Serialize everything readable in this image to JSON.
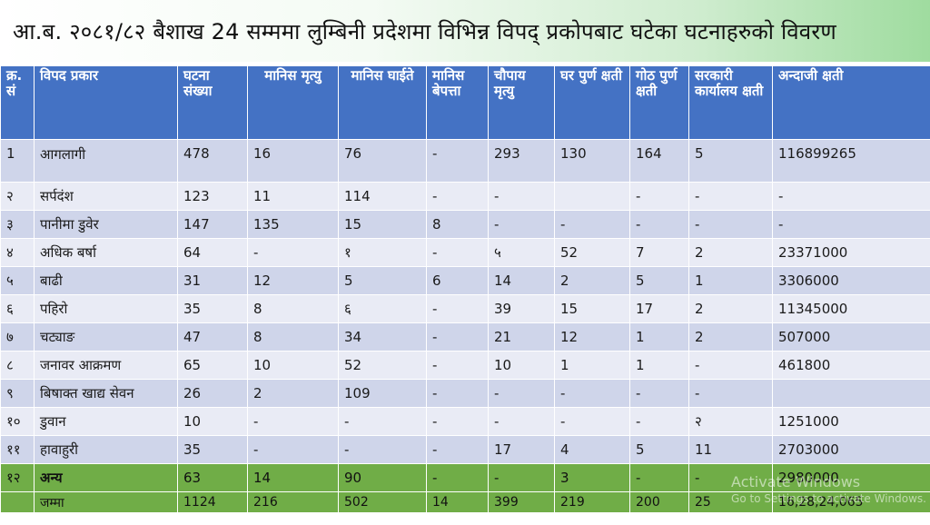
{
  "title": "आ.ब. २०८१/८२ बैशाख 24 सम्ममा लुम्बिनी प्रदेशमा विभिन्न विपद् प्रकोपबाट घटेका घटनाहरुको विवरण",
  "headers": [
    "क्र. सं",
    "विपद प्रकार",
    "घटना संख्या",
    "मानिस मृत्यु",
    "मानिस घाईते",
    "मानिस बेपत्ता",
    "चौपाय मृत्यु",
    "घर पुर्ण क्षती",
    "गोठ पुर्ण क्षती",
    "सरकारी कार्यालय क्षती",
    "अन्दाजी क्षती"
  ],
  "rows": [
    [
      "1",
      "आगलागी",
      "478",
      "16",
      "76",
      "-",
      "293",
      "130",
      "164",
      "5",
      "116899265"
    ],
    [
      "२",
      "सर्पदंश",
      "123",
      "11",
      "114",
      "-",
      "-",
      "",
      "-",
      "-",
      "-"
    ],
    [
      "३",
      "पानीमा डुवेर",
      "147",
      "135",
      "15",
      "8",
      "-",
      "-",
      "-",
      "-",
      "-"
    ],
    [
      "४",
      "अधिक बर्षा",
      "64",
      "-",
      "१",
      "-",
      "५",
      "52",
      "7",
      "2",
      "23371000"
    ],
    [
      "५",
      "बाढी",
      "31",
      "12",
      "5",
      "6",
      "14",
      "2",
      "5",
      "1",
      "3306000"
    ],
    [
      "६",
      "पहिरो",
      "35",
      "8",
      "६",
      "-",
      "39",
      "15",
      "17",
      "2",
      "11345000"
    ],
    [
      "७",
      "चट्याङ",
      "47",
      "8",
      "34",
      "-",
      "21",
      "12",
      "1",
      "2",
      "507000"
    ],
    [
      "८",
      "जनावर आक्रमण",
      "65",
      "10",
      "52",
      "-",
      "10",
      "1",
      "1",
      "-",
      "461800"
    ],
    [
      "९",
      "बिषाक्त खाद्य सेवन",
      "26",
      "2",
      "109",
      "-",
      "-",
      "-",
      "-",
      "-",
      ""
    ],
    [
      "१०",
      "डुवान",
      "10",
      "-",
      "-",
      "-",
      "-",
      "-",
      "-",
      "२",
      "1251000"
    ],
    [
      "११",
      "हावाहुरी",
      "35",
      "-",
      "-",
      "-",
      "17",
      "4",
      "5",
      "11",
      "2703000"
    ]
  ],
  "other_row": [
    "१२",
    "अन्य",
    "63",
    "14",
    "90",
    "-",
    "-",
    "3",
    "-",
    "-",
    "2980000"
  ],
  "total_row": [
    "",
    "जम्मा",
    "1124",
    "216",
    "502",
    "14",
    "399",
    "219",
    "200",
    "25",
    "16,28,24,065"
  ],
  "watermark": {
    "line1": "Activate Windows",
    "line2": "Go to Settings to activate Windows."
  }
}
